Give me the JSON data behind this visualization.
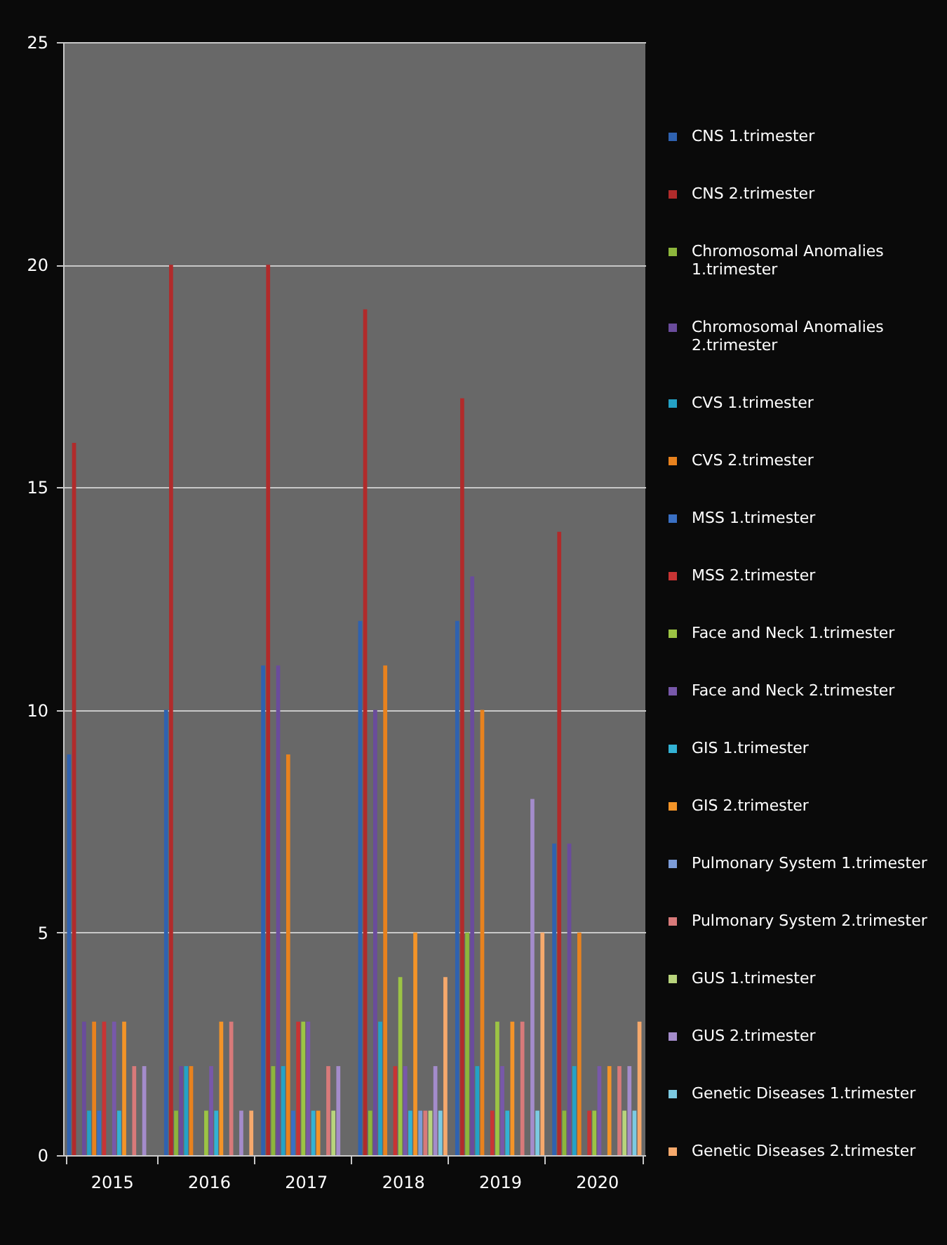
{
  "chart_data": {
    "type": "bar",
    "categories": [
      "2015",
      "2016",
      "2017",
      "2018",
      "2019",
      "2020"
    ],
    "series": [
      {
        "name": "CNS 1.trimester",
        "color": "#2f62b0",
        "values": [
          9,
          10,
          11,
          12,
          12,
          7
        ]
      },
      {
        "name": "CNS 2.trimester",
        "color": "#b12b2b",
        "values": [
          16,
          20,
          20,
          19,
          17,
          14
        ]
      },
      {
        "name": "Chromosomal Anomalies 1.trimester",
        "color": "#8db63c",
        "values": [
          0,
          1,
          2,
          1,
          5,
          1
        ]
      },
      {
        "name": "Chromosomal Anomalies 2.trimester",
        "color": "#6a4c9c",
        "values": [
          3,
          2,
          11,
          10,
          13,
          7
        ]
      },
      {
        "name": "CVS 1.trimester",
        "color": "#24a2c6",
        "values": [
          1,
          2,
          2,
          3,
          2,
          2
        ]
      },
      {
        "name": "CVS 2.trimester",
        "color": "#e8821e",
        "values": [
          3,
          2,
          9,
          11,
          10,
          5
        ]
      },
      {
        "name": "MSS 1.trimester",
        "color": "#3a70c4",
        "values": [
          1,
          0,
          1,
          0,
          0,
          0
        ]
      },
      {
        "name": "MSS 2.trimester",
        "color": "#c83434",
        "values": [
          3,
          0,
          3,
          2,
          1,
          1
        ]
      },
      {
        "name": "Face and Neck 1.trimester",
        "color": "#9cc444",
        "values": [
          0,
          1,
          3,
          4,
          3,
          1
        ]
      },
      {
        "name": "Face and Neck 2.trimester",
        "color": "#7858aa",
        "values": [
          3,
          2,
          3,
          2,
          2,
          2
        ]
      },
      {
        "name": "GIS 1.trimester",
        "color": "#33b2d4",
        "values": [
          1,
          1,
          1,
          1,
          1,
          0
        ]
      },
      {
        "name": "GIS 2.trimester",
        "color": "#f39428",
        "values": [
          3,
          3,
          1,
          5,
          3,
          2
        ]
      },
      {
        "name": "Pulmonary System 1.trimester",
        "color": "#7c9cd8",
        "values": [
          0,
          0,
          0,
          1,
          0,
          0
        ]
      },
      {
        "name": "Pulmonary System 2.trimester",
        "color": "#d87a7a",
        "values": [
          2,
          3,
          2,
          1,
          3,
          2
        ]
      },
      {
        "name": "GUS 1.trimester",
        "color": "#b8d47c",
        "values": [
          0,
          0,
          1,
          1,
          0,
          1
        ]
      },
      {
        "name": "GUS 2.trimester",
        "color": "#a48ccb",
        "values": [
          2,
          1,
          2,
          2,
          8,
          2
        ]
      },
      {
        "name": "Genetic Diseases 1.trimester",
        "color": "#7ccae2",
        "values": [
          0,
          0,
          0,
          1,
          1,
          1
        ]
      },
      {
        "name": "Genetic Diseases 2.trimester",
        "color": "#f6a96c",
        "values": [
          0,
          1,
          0,
          4,
          5,
          3
        ]
      }
    ],
    "ylim": [
      0,
      25
    ],
    "yticks": [
      0,
      5,
      10,
      15,
      20,
      25
    ],
    "grid": "y",
    "legend": "right"
  }
}
